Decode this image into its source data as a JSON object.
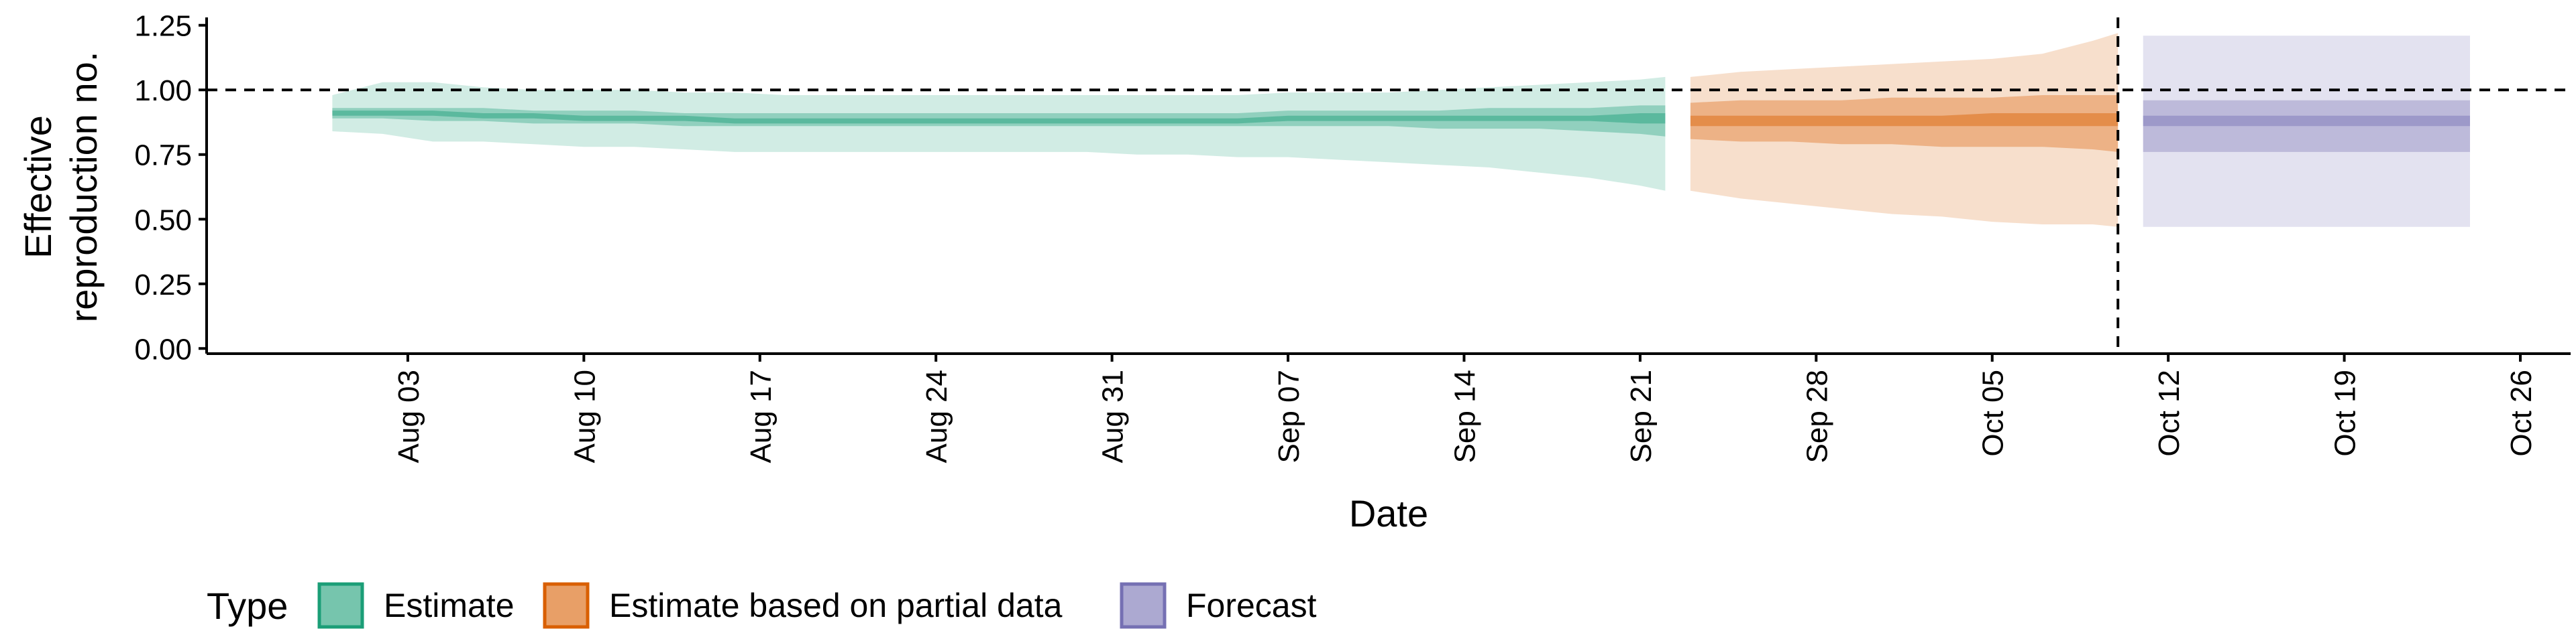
{
  "chart_data": {
    "type": "area",
    "xlabel": "Date",
    "ylabel_lines": [
      "Effective",
      "reproduction no."
    ],
    "yticks": [
      "0.00",
      "0.25",
      "0.50",
      "0.75",
      "1.00",
      "1.25"
    ],
    "ylim": [
      -0.02,
      1.27
    ],
    "xlim": [
      "2020-07-26",
      "2020-10-28"
    ],
    "xticks": [
      {
        "date": "2020-08-03",
        "label": "Aug 03"
      },
      {
        "date": "2020-08-10",
        "label": "Aug 10"
      },
      {
        "date": "2020-08-17",
        "label": "Aug 17"
      },
      {
        "date": "2020-08-24",
        "label": "Aug 24"
      },
      {
        "date": "2020-08-31",
        "label": "Aug 31"
      },
      {
        "date": "2020-09-07",
        "label": "Sep 07"
      },
      {
        "date": "2020-09-14",
        "label": "Sep 14"
      },
      {
        "date": "2020-09-21",
        "label": "Sep 21"
      },
      {
        "date": "2020-09-28",
        "label": "Sep 28"
      },
      {
        "date": "2020-10-05",
        "label": "Oct 05"
      },
      {
        "date": "2020-10-12",
        "label": "Oct 12"
      },
      {
        "date": "2020-10-19",
        "label": "Oct 19"
      },
      {
        "date": "2020-10-26",
        "label": "Oct 26"
      }
    ],
    "reference_line_y": 1.0,
    "reference_line_x": "2020-10-10",
    "legend": {
      "title": "Type",
      "position": "bottom"
    },
    "series": [
      {
        "name": "Estimate",
        "color": "#1b9e77",
        "dates": [
          "2020-07-31",
          "2020-08-02",
          "2020-08-04",
          "2020-08-06",
          "2020-08-08",
          "2020-08-10",
          "2020-08-12",
          "2020-08-14",
          "2020-08-16",
          "2020-08-18",
          "2020-08-20",
          "2020-08-22",
          "2020-08-24",
          "2020-08-26",
          "2020-08-28",
          "2020-08-30",
          "2020-09-01",
          "2020-09-03",
          "2020-09-05",
          "2020-09-07",
          "2020-09-09",
          "2020-09-11",
          "2020-09-13",
          "2020-09-15",
          "2020-09-17",
          "2020-09-19",
          "2020-09-21",
          "2020-09-22"
        ],
        "lower_90": [
          0.84,
          0.83,
          0.8,
          0.8,
          0.79,
          0.78,
          0.78,
          0.77,
          0.76,
          0.76,
          0.76,
          0.76,
          0.76,
          0.76,
          0.76,
          0.76,
          0.75,
          0.75,
          0.74,
          0.74,
          0.73,
          0.72,
          0.71,
          0.7,
          0.68,
          0.66,
          0.63,
          0.61
        ],
        "lower_50": [
          0.89,
          0.89,
          0.88,
          0.88,
          0.87,
          0.87,
          0.87,
          0.86,
          0.86,
          0.86,
          0.86,
          0.86,
          0.86,
          0.86,
          0.86,
          0.86,
          0.86,
          0.86,
          0.86,
          0.86,
          0.86,
          0.86,
          0.85,
          0.85,
          0.85,
          0.84,
          0.83,
          0.82
        ],
        "lower_20": [
          0.9,
          0.9,
          0.9,
          0.89,
          0.89,
          0.88,
          0.88,
          0.88,
          0.87,
          0.87,
          0.87,
          0.87,
          0.87,
          0.87,
          0.87,
          0.87,
          0.87,
          0.87,
          0.87,
          0.88,
          0.88,
          0.88,
          0.88,
          0.88,
          0.88,
          0.88,
          0.87,
          0.87
        ],
        "median": [
          0.91,
          0.91,
          0.91,
          0.9,
          0.9,
          0.89,
          0.89,
          0.89,
          0.88,
          0.88,
          0.88,
          0.88,
          0.88,
          0.88,
          0.88,
          0.88,
          0.88,
          0.88,
          0.88,
          0.89,
          0.89,
          0.89,
          0.89,
          0.89,
          0.89,
          0.89,
          0.89,
          0.89
        ],
        "upper_20": [
          0.92,
          0.92,
          0.92,
          0.91,
          0.91,
          0.9,
          0.9,
          0.9,
          0.89,
          0.89,
          0.89,
          0.89,
          0.89,
          0.89,
          0.89,
          0.89,
          0.89,
          0.89,
          0.89,
          0.9,
          0.9,
          0.9,
          0.9,
          0.9,
          0.9,
          0.9,
          0.91,
          0.91
        ],
        "upper_50": [
          0.93,
          0.93,
          0.93,
          0.93,
          0.92,
          0.92,
          0.92,
          0.91,
          0.91,
          0.91,
          0.91,
          0.91,
          0.91,
          0.91,
          0.91,
          0.91,
          0.91,
          0.91,
          0.91,
          0.92,
          0.92,
          0.92,
          0.92,
          0.93,
          0.93,
          0.93,
          0.94,
          0.94
        ],
        "upper_90": [
          0.98,
          1.03,
          1.03,
          1.01,
          1.0,
          1.0,
          1.0,
          0.99,
          0.99,
          0.98,
          0.98,
          0.98,
          0.98,
          0.98,
          0.98,
          0.98,
          0.98,
          0.98,
          0.98,
          0.99,
          0.99,
          0.99,
          1.0,
          1.01,
          1.02,
          1.03,
          1.04,
          1.05
        ]
      },
      {
        "name": "Estimate based on partial data",
        "color": "#d95f02",
        "dates": [
          "2020-09-23",
          "2020-09-25",
          "2020-09-27",
          "2020-09-29",
          "2020-10-01",
          "2020-10-03",
          "2020-10-05",
          "2020-10-07",
          "2020-10-09",
          "2020-10-10"
        ],
        "lower_90": [
          0.61,
          0.58,
          0.56,
          0.54,
          0.52,
          0.51,
          0.49,
          0.48,
          0.48,
          0.47
        ],
        "lower_50": [
          0.81,
          0.8,
          0.8,
          0.79,
          0.79,
          0.78,
          0.78,
          0.78,
          0.77,
          0.76
        ],
        "lower_20": [
          0.86,
          0.86,
          0.86,
          0.86,
          0.86,
          0.86,
          0.86,
          0.86,
          0.86,
          0.86
        ],
        "median": [
          0.88,
          0.88,
          0.88,
          0.88,
          0.88,
          0.88,
          0.89,
          0.89,
          0.89,
          0.89
        ],
        "upper_20": [
          0.9,
          0.9,
          0.9,
          0.9,
          0.9,
          0.9,
          0.91,
          0.91,
          0.91,
          0.91
        ],
        "upper_50": [
          0.95,
          0.96,
          0.96,
          0.96,
          0.97,
          0.97,
          0.97,
          0.98,
          0.98,
          0.98
        ],
        "upper_90": [
          1.05,
          1.07,
          1.08,
          1.09,
          1.1,
          1.11,
          1.12,
          1.14,
          1.19,
          1.22
        ]
      },
      {
        "name": "Forecast",
        "color": "#7570b3",
        "dates": [
          "2020-10-11",
          "2020-10-24"
        ],
        "lower_90": [
          0.47,
          0.47
        ],
        "lower_50": [
          0.76,
          0.76
        ],
        "lower_20": [
          0.86,
          0.86
        ],
        "median": [
          0.88,
          0.88
        ],
        "upper_20": [
          0.9,
          0.9
        ],
        "upper_50": [
          0.96,
          0.96
        ],
        "upper_90": [
          1.21,
          1.21
        ]
      }
    ]
  }
}
